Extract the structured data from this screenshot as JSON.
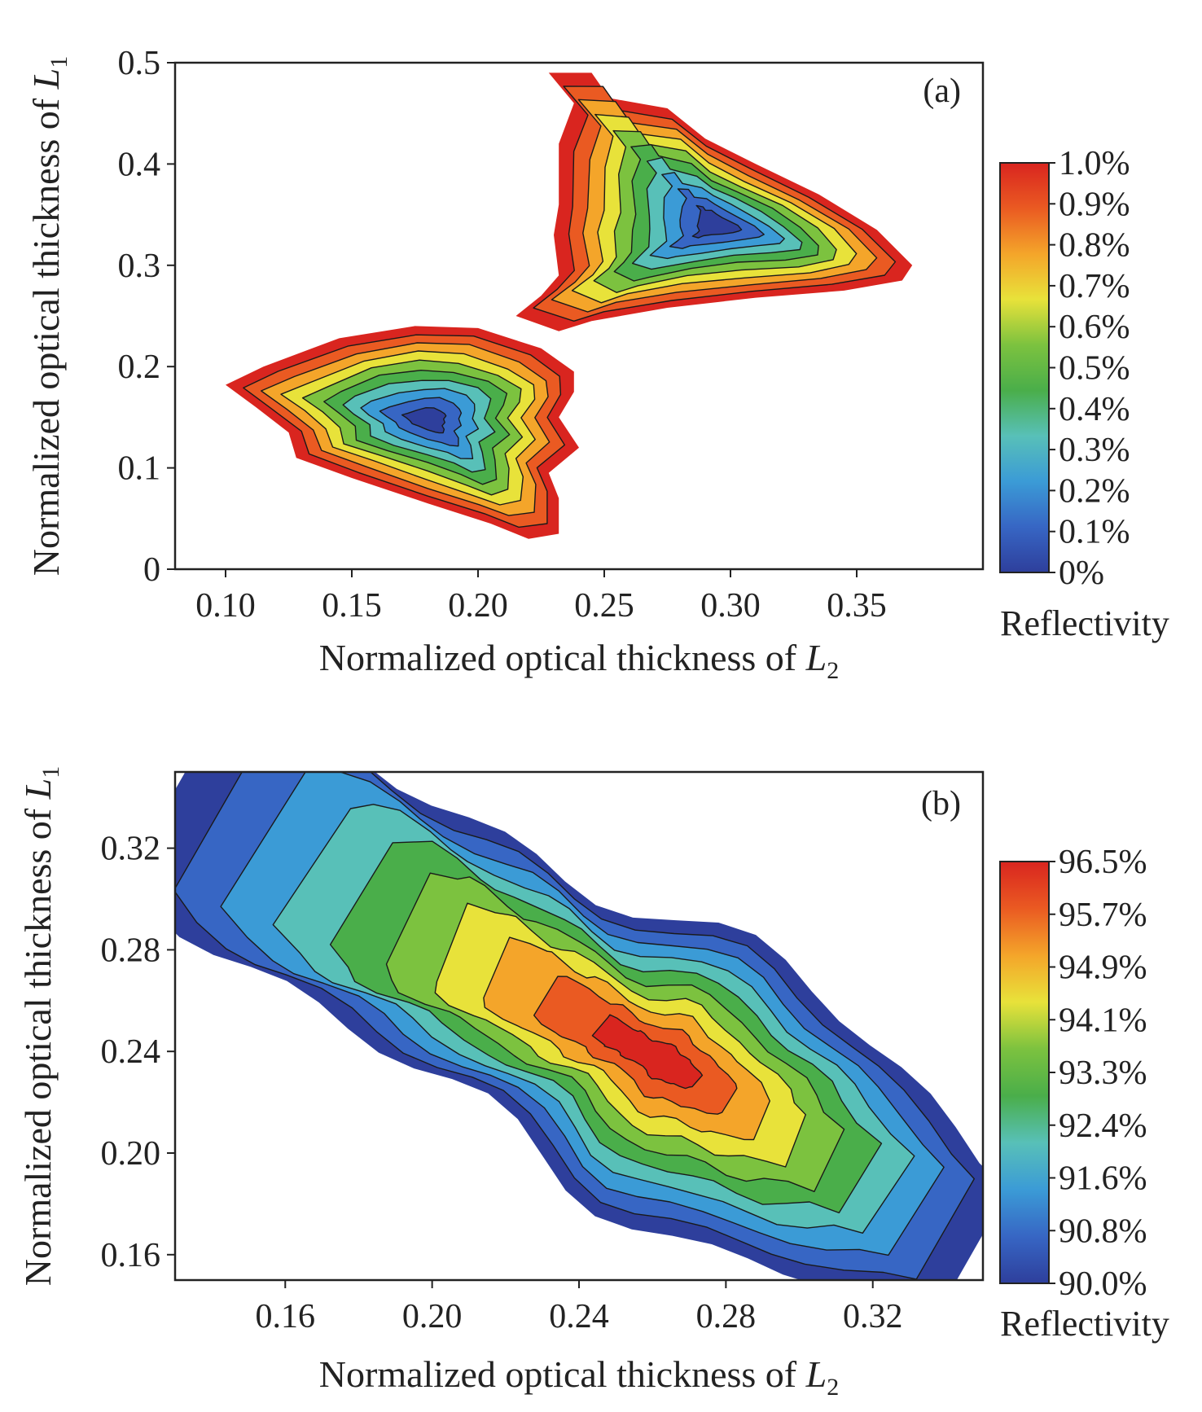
{
  "colors": {
    "map_low_to_high": [
      "#2e3f9c",
      "#3766c4",
      "#3b9bd6",
      "#58c0b8",
      "#4aae4a",
      "#7cc23f",
      "#e8e23a",
      "#f4a52a",
      "#ea5a22",
      "#d9251f"
    ],
    "contour_line": "#1a1a1a",
    "frame": "#222222"
  },
  "chart_data": [
    {
      "panel_label": "(a)",
      "type": "contour",
      "xlabel": "Normalized optical thickness of ",
      "xlabel_var": "L",
      "xlabel_sub": "2",
      "ylabel": "Normalized optical thickness of ",
      "ylabel_var": "L",
      "ylabel_sub": "1",
      "xlim": [
        0.08,
        0.4
      ],
      "ylim": [
        0.0,
        0.5
      ],
      "xticks": [
        "0.10",
        "0.15",
        "0.20",
        "0.25",
        "0.30",
        "0.35"
      ],
      "xtick_values": [
        0.1,
        0.15,
        0.2,
        0.25,
        0.3,
        0.35
      ],
      "yticks": [
        "0",
        "0.1",
        "0.2",
        "0.3",
        "0.4",
        "0.5"
      ],
      "ytick_values": [
        0.0,
        0.1,
        0.2,
        0.3,
        0.4,
        0.5
      ],
      "colorbar": {
        "label": "Reflectivity",
        "range": [
          0.0,
          1.0
        ],
        "tick_labels": [
          "1.0%",
          "0.9%",
          "0.8%",
          "0.7%",
          "0.6%",
          "0.5%",
          "0.4%",
          "0.3%",
          "0.2%",
          "0.1%",
          "0%"
        ]
      },
      "regions": [
        {
          "minimum_at": [
            0.295,
            0.34
          ],
          "min_value": 0.0,
          "boundary_value": 1.0,
          "outline": [
            [
              0.228,
              0.49
            ],
            [
              0.245,
              0.49
            ],
            [
              0.252,
              0.465
            ],
            [
              0.275,
              0.455
            ],
            [
              0.29,
              0.425
            ],
            [
              0.31,
              0.4
            ],
            [
              0.335,
              0.37
            ],
            [
              0.358,
              0.335
            ],
            [
              0.372,
              0.3
            ],
            [
              0.368,
              0.285
            ],
            [
              0.345,
              0.275
            ],
            [
              0.31,
              0.268
            ],
            [
              0.275,
              0.258
            ],
            [
              0.245,
              0.245
            ],
            [
              0.232,
              0.235
            ],
            [
              0.215,
              0.25
            ],
            [
              0.225,
              0.27
            ],
            [
              0.232,
              0.29
            ],
            [
              0.23,
              0.33
            ],
            [
              0.232,
              0.36
            ],
            [
              0.232,
              0.42
            ],
            [
              0.238,
              0.46
            ]
          ]
        },
        {
          "minimum_at": [
            0.18,
            0.148
          ],
          "min_value": 0.0,
          "boundary_value": 1.0,
          "outline": [
            [
              0.1,
              0.182
            ],
            [
              0.115,
              0.2
            ],
            [
              0.145,
              0.228
            ],
            [
              0.175,
              0.24
            ],
            [
              0.2,
              0.238
            ],
            [
              0.225,
              0.218
            ],
            [
              0.238,
              0.195
            ],
            [
              0.238,
              0.175
            ],
            [
              0.232,
              0.15
            ],
            [
              0.24,
              0.12
            ],
            [
              0.228,
              0.095
            ],
            [
              0.232,
              0.07
            ],
            [
              0.232,
              0.035
            ],
            [
              0.22,
              0.03
            ],
            [
              0.205,
              0.045
            ],
            [
              0.18,
              0.065
            ],
            [
              0.15,
              0.09
            ],
            [
              0.128,
              0.11
            ],
            [
              0.125,
              0.135
            ],
            [
              0.112,
              0.16
            ]
          ]
        }
      ]
    },
    {
      "panel_label": "(b)",
      "type": "contour",
      "xlabel": "Normalized optical thickness of ",
      "xlabel_var": "L",
      "xlabel_sub": "2",
      "ylabel": "Normalized optical thickness of ",
      "ylabel_var": "L",
      "ylabel_sub": "1",
      "xlim": [
        0.13,
        0.35
      ],
      "ylim": [
        0.15,
        0.35
      ],
      "xticks": [
        "0.16",
        "0.20",
        "0.24",
        "0.28",
        "0.32"
      ],
      "xtick_values": [
        0.16,
        0.2,
        0.24,
        0.28,
        0.32
      ],
      "yticks": [
        "0.16",
        "0.20",
        "0.24",
        "0.28",
        "0.32"
      ],
      "ytick_values": [
        0.16,
        0.2,
        0.24,
        0.28,
        0.32
      ],
      "colorbar": {
        "label": "Reflectivity",
        "range": [
          90.0,
          96.5
        ],
        "tick_labels": [
          "96.5%",
          "95.7%",
          "94.9%",
          "94.1%",
          "93.3%",
          "92.4%",
          "91.6%",
          "90.8%",
          "90.0%"
        ]
      },
      "regions": [
        {
          "maximum_at": [
            0.262,
            0.237
          ],
          "max_value": 96.5,
          "boundary_value": 90.0,
          "band": {
            "start": [
              0.13,
              0.343
            ],
            "end": [
              0.348,
              0.163
            ],
            "width": 0.075
          }
        }
      ]
    }
  ]
}
